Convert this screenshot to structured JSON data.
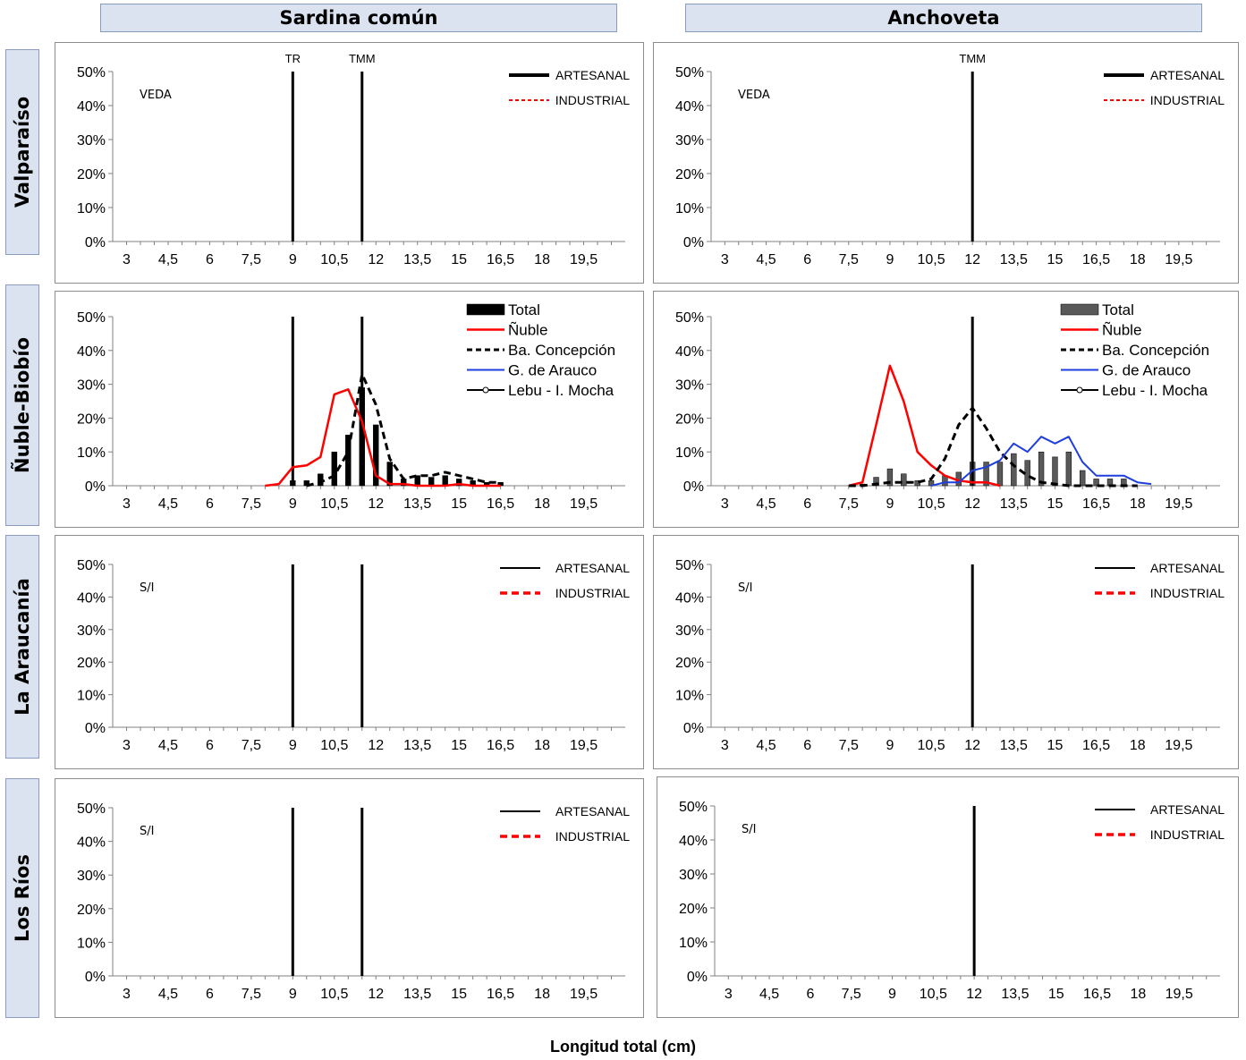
{
  "column_headers": [
    "Sardina común",
    "Anchoveta"
  ],
  "row_headers": [
    "Valparaíso",
    "Ñuble-Biobío",
    "La Araucanía",
    "Los Ríos"
  ],
  "xlabel": "Longitud total (cm)",
  "colors": {
    "artesanal": "#000000",
    "industrial": "#ff0000",
    "nuble": "#ff0000",
    "concepcion": "#000000",
    "arauco": "#1f3fdd",
    "lebu": "#000000",
    "total_sardina": "#000000",
    "total_anchoveta": "#595959"
  },
  "chart_data": [
    {
      "id": "sc-valparaiso",
      "type": "line",
      "x_ticks": [
        "3",
        "4,5",
        "6",
        "7,5",
        "9",
        "10,5",
        "12",
        "13,5",
        "15",
        "16,5",
        "18",
        "19,5"
      ],
      "y_ticks": [
        "0%",
        "10%",
        "20%",
        "30%",
        "40%",
        "50%"
      ],
      "xlim": [
        2.5,
        21
      ],
      "ylim": [
        0,
        50
      ],
      "annotation": "VEDA",
      "vlines": [
        {
          "x": 9,
          "label": "TR"
        },
        {
          "x": 11.5,
          "label": "TMM"
        }
      ],
      "legend": [
        "ARTESANAL",
        "INDUSTRIAL"
      ],
      "series": []
    },
    {
      "id": "an-valparaiso",
      "type": "line",
      "x_ticks": [
        "3",
        "4,5",
        "6",
        "7,5",
        "9",
        "10,5",
        "12",
        "13,5",
        "15",
        "16,5",
        "18",
        "19,5"
      ],
      "y_ticks": [
        "0%",
        "10%",
        "20%",
        "30%",
        "40%",
        "50%"
      ],
      "xlim": [
        2.5,
        21
      ],
      "ylim": [
        0,
        50
      ],
      "annotation": "VEDA",
      "vlines": [
        {
          "x": 12,
          "label": "TMM"
        }
      ],
      "legend": [
        "ARTESANAL",
        "INDUSTRIAL"
      ],
      "series": []
    },
    {
      "id": "sc-nuble",
      "type": "bar",
      "x_ticks": [
        "3",
        "4,5",
        "6",
        "7,5",
        "9",
        "10,5",
        "12",
        "13,5",
        "15",
        "16,5",
        "18",
        "19,5"
      ],
      "y_ticks": [
        "0%",
        "10%",
        "20%",
        "30%",
        "40%",
        "50%"
      ],
      "xlim": [
        2.5,
        21
      ],
      "ylim": [
        0,
        50
      ],
      "annotation": "",
      "vlines": [
        {
          "x": 9,
          "label": ""
        },
        {
          "x": 11.5,
          "label": ""
        }
      ],
      "legend": [
        "Total",
        "Ñuble",
        "Ba. Concepción",
        "G. de Arauco",
        "Lebu - I. Mocha"
      ],
      "bars": {
        "x": [
          9,
          9.5,
          10,
          10.5,
          11,
          11.5,
          12,
          12.5,
          13,
          13.5,
          14,
          14.5,
          15,
          15.5,
          16,
          16.5
        ],
        "values": [
          1.5,
          1.5,
          3.5,
          10,
          15,
          29,
          18,
          7,
          2,
          3,
          2.5,
          3,
          2,
          1.5,
          1,
          1
        ]
      },
      "series": [
        {
          "name": "Ñuble",
          "x": [
            8,
            8.5,
            9,
            9.5,
            10,
            10.5,
            11,
            11.5,
            12,
            12.5,
            13,
            13.5,
            14,
            14.5,
            15,
            15.5,
            16,
            16.5
          ],
          "values": [
            0,
            0.5,
            5.5,
            6,
            8.5,
            27,
            28.5,
            19,
            3,
            0.5,
            0.5,
            0,
            0,
            0,
            0.5,
            0,
            0,
            0
          ]
        },
        {
          "name": "Ba. Concepción",
          "x": [
            9.5,
            10,
            10.5,
            11,
            11.5,
            12,
            12.5,
            13,
            13.5,
            14,
            14.5,
            15,
            15.5,
            16,
            16.5
          ],
          "values": [
            0,
            1,
            3,
            10,
            33,
            24,
            8,
            2,
            3,
            3,
            4,
            3,
            2,
            1,
            1
          ]
        }
      ]
    },
    {
      "id": "an-nuble",
      "type": "bar",
      "x_ticks": [
        "3",
        "4,5",
        "6",
        "7,5",
        "9",
        "10,5",
        "12",
        "13,5",
        "15",
        "16,5",
        "18",
        "19,5"
      ],
      "y_ticks": [
        "0%",
        "10%",
        "20%",
        "30%",
        "40%",
        "50%"
      ],
      "xlim": [
        2.5,
        21
      ],
      "ylim": [
        0,
        50
      ],
      "annotation": "",
      "vlines": [
        {
          "x": 12,
          "label": ""
        }
      ],
      "legend": [
        "Total",
        "Ñuble",
        "Ba. Concepción",
        "G. de Arauco",
        "Lebu - I. Mocha"
      ],
      "bars": {
        "x": [
          8,
          8.5,
          9,
          9.5,
          10,
          10.5,
          11,
          11.5,
          12,
          12.5,
          13,
          13.5,
          14,
          14.5,
          15,
          15.5,
          16,
          16.5,
          17,
          17.5
        ],
        "values": [
          0.5,
          2.5,
          5,
          3.5,
          1.5,
          1.5,
          3,
          4,
          7,
          7,
          7,
          9.5,
          7.5,
          10,
          8.5,
          10,
          4.5,
          2,
          2,
          2
        ]
      },
      "series": [
        {
          "name": "Ñuble",
          "x": [
            7.5,
            8,
            8.5,
            9,
            9.5,
            10,
            10.5,
            11,
            11.5,
            12,
            12.5,
            13
          ],
          "values": [
            0,
            1,
            18,
            35.5,
            25,
            10,
            6,
            3,
            1.5,
            1,
            1,
            0
          ]
        },
        {
          "name": "Ba. Concepción",
          "x": [
            7.5,
            8,
            8.5,
            9,
            9.5,
            10,
            10.5,
            11,
            11.5,
            12,
            12.5,
            13,
            13.5,
            14,
            14.5,
            15,
            15.5,
            16,
            16.5,
            17,
            17.5,
            18
          ],
          "values": [
            0,
            0,
            0.5,
            1,
            1,
            1,
            2,
            8,
            18,
            23,
            17,
            10,
            6,
            3,
            1,
            0.5,
            0,
            0,
            0,
            0,
            0,
            0
          ]
        },
        {
          "name": "G. de Arauco",
          "x": [
            10.5,
            11,
            11.5,
            12,
            12.5,
            13,
            13.5,
            14,
            14.5,
            15,
            15.5,
            16,
            16.5,
            17,
            17.5,
            18,
            18.5
          ],
          "values": [
            0,
            1,
            1,
            4.5,
            5.5,
            7.5,
            12.5,
            10,
            14.5,
            12.5,
            14.5,
            7,
            3,
            3,
            3,
            1,
            0.5
          ]
        }
      ]
    },
    {
      "id": "sc-araucania",
      "type": "line",
      "x_ticks": [
        "3",
        "4,5",
        "6",
        "7,5",
        "9",
        "10,5",
        "12",
        "13,5",
        "15",
        "16,5",
        "18",
        "19,5"
      ],
      "y_ticks": [
        "0%",
        "10%",
        "20%",
        "30%",
        "40%",
        "50%"
      ],
      "xlim": [
        2.5,
        21
      ],
      "ylim": [
        0,
        50
      ],
      "annotation": "S/I",
      "vlines": [
        {
          "x": 9,
          "label": ""
        },
        {
          "x": 11.5,
          "label": ""
        }
      ],
      "legend": [
        "ARTESANAL",
        "INDUSTRIAL"
      ],
      "series": []
    },
    {
      "id": "an-araucania",
      "type": "line",
      "x_ticks": [
        "3",
        "4,5",
        "6",
        "7,5",
        "9",
        "10,5",
        "12",
        "13,5",
        "15",
        "16,5",
        "18",
        "19,5"
      ],
      "y_ticks": [
        "0%",
        "10%",
        "20%",
        "30%",
        "40%",
        "50%"
      ],
      "xlim": [
        2.5,
        21
      ],
      "ylim": [
        0,
        50
      ],
      "annotation": "S/I",
      "vlines": [
        {
          "x": 12,
          "label": ""
        }
      ],
      "legend": [
        "ARTESANAL",
        "INDUSTRIAL"
      ],
      "series": []
    },
    {
      "id": "sc-rios",
      "type": "line",
      "x_ticks": [
        "3",
        "4,5",
        "6",
        "7,5",
        "9",
        "10,5",
        "12",
        "13,5",
        "15",
        "16,5",
        "18",
        "19,5"
      ],
      "y_ticks": [
        "0%",
        "10%",
        "20%",
        "30%",
        "40%",
        "50%"
      ],
      "xlim": [
        2.5,
        21
      ],
      "ylim": [
        0,
        50
      ],
      "annotation": "S/I",
      "vlines": [
        {
          "x": 9,
          "label": ""
        },
        {
          "x": 11.5,
          "label": ""
        }
      ],
      "legend": [
        "ARTESANAL",
        "INDUSTRIAL"
      ],
      "series": []
    },
    {
      "id": "an-rios",
      "type": "line",
      "x_ticks": [
        "3",
        "4,5",
        "6",
        "7,5",
        "9",
        "10,5",
        "12",
        "13,5",
        "15",
        "16,5",
        "18",
        "19,5"
      ],
      "y_ticks": [
        "0%",
        "10%",
        "20%",
        "30%",
        "40%",
        "50%"
      ],
      "xlim": [
        2.5,
        21
      ],
      "ylim": [
        0,
        50
      ],
      "annotation": "S/I",
      "vlines": [
        {
          "x": 12,
          "label": ""
        }
      ],
      "legend": [
        "ARTESANAL",
        "INDUSTRIAL"
      ],
      "series": []
    }
  ]
}
